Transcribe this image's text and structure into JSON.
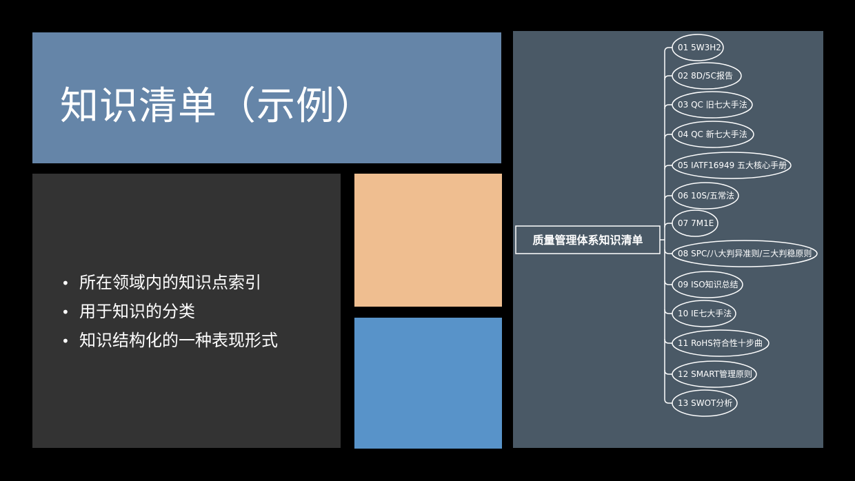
{
  "title": "知识清单（示例）",
  "bullets": [
    "所在领域内的知识点索引",
    "用于知识的分类",
    "知识结构化的一种表现形式"
  ],
  "mindmap": {
    "root": "质量管理体系知识清单",
    "items": [
      "01 5W3H2",
      "02 8D/5C报告",
      "03 QC 旧七大手法",
      "04 QC 新七大手法",
      "05 IATF16949 五大核心手册",
      "06 10S/五常法",
      "07 7M1E",
      "08 SPC/八大判异准则/三大判稳原则",
      "09 ISO知识总结",
      "10 IE七大手法",
      "11 RoHS符合性十步曲",
      "12 SMART管理原则",
      "13 SWOT分析"
    ]
  },
  "colors": {
    "title_panel": "#6585a8",
    "bullet_panel": "#333333",
    "peach_panel": "#efbe90",
    "blue_panel": "#5893c9",
    "mindmap_panel": "#4a5966",
    "line": "#ffffff"
  }
}
